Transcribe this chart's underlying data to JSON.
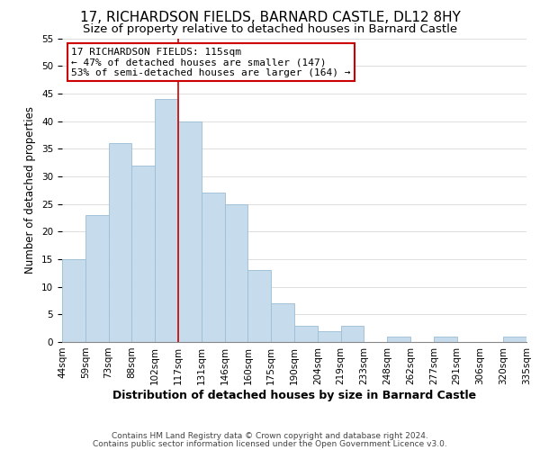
{
  "title": "17, RICHARDSON FIELDS, BARNARD CASTLE, DL12 8HY",
  "subtitle": "Size of property relative to detached houses in Barnard Castle",
  "xlabel": "Distribution of detached houses by size in Barnard Castle",
  "ylabel": "Number of detached properties",
  "bins": [
    "44sqm",
    "59sqm",
    "73sqm",
    "88sqm",
    "102sqm",
    "117sqm",
    "131sqm",
    "146sqm",
    "160sqm",
    "175sqm",
    "190sqm",
    "204sqm",
    "219sqm",
    "233sqm",
    "248sqm",
    "262sqm",
    "277sqm",
    "291sqm",
    "306sqm",
    "320sqm",
    "335sqm"
  ],
  "values": [
    15,
    23,
    36,
    32,
    44,
    40,
    27,
    25,
    13,
    7,
    3,
    2,
    3,
    0,
    1,
    0,
    1,
    0,
    0,
    1
  ],
  "bar_color": "#c6dcec",
  "bar_edge_color": "#9bbdd4",
  "highlight_line_color": "#cc0000",
  "annotation_title": "17 RICHARDSON FIELDS: 115sqm",
  "annotation_line1": "← 47% of detached houses are smaller (147)",
  "annotation_line2": "53% of semi-detached houses are larger (164) →",
  "annotation_box_edge_color": "#cc0000",
  "ylim": [
    0,
    55
  ],
  "yticks": [
    0,
    5,
    10,
    15,
    20,
    25,
    30,
    35,
    40,
    45,
    50,
    55
  ],
  "footer1": "Contains HM Land Registry data © Crown copyright and database right 2024.",
  "footer2": "Contains public sector information licensed under the Open Government Licence v3.0.",
  "title_fontsize": 11,
  "subtitle_fontsize": 9.5,
  "xlabel_fontsize": 9,
  "ylabel_fontsize": 8.5,
  "tick_fontsize": 7.5,
  "annotation_fontsize": 8,
  "footer_fontsize": 6.5
}
